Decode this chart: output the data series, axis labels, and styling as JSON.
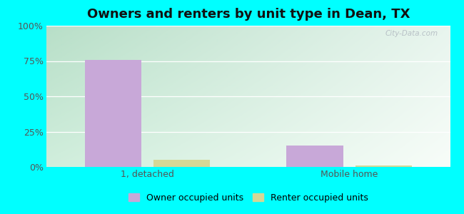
{
  "title": "Owners and renters by unit type in Dean, TX",
  "categories": [
    "1, detached",
    "Mobile home"
  ],
  "owner_values": [
    76,
    15
  ],
  "renter_values": [
    5,
    1
  ],
  "owner_color": "#c8a8d8",
  "renter_color": "#d4d896",
  "ylim": [
    0,
    100
  ],
  "ytick_labels": [
    "0%",
    "25%",
    "50%",
    "75%",
    "100%"
  ],
  "ytick_values": [
    0,
    25,
    50,
    75,
    100
  ],
  "bar_width": 0.28,
  "background_outer": "#00ffff",
  "legend_owner": "Owner occupied units",
  "legend_renter": "Renter occupied units",
  "title_fontsize": 13,
  "tick_fontsize": 9,
  "legend_fontsize": 9,
  "watermark": "City-Data.com"
}
